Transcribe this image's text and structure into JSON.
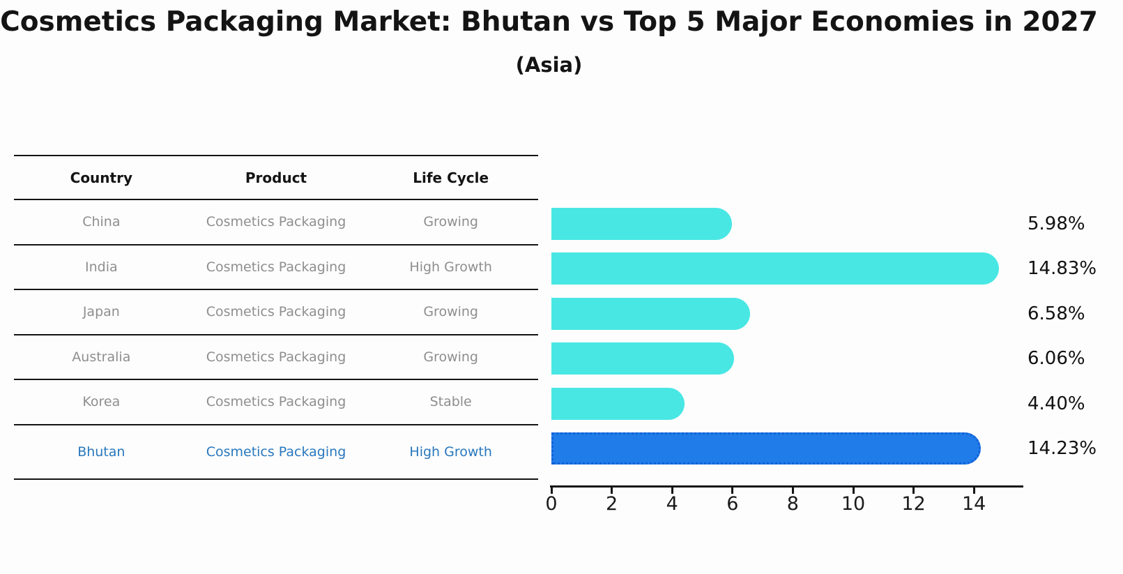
{
  "title": "Cosmetics Packaging Market: Bhutan vs Top 5 Major Economies in 2027",
  "subtitle": "(Asia)",
  "table": {
    "headers": [
      "Country",
      "Product",
      "Life Cycle"
    ],
    "rows": [
      {
        "country": "China",
        "product": "Cosmetics Packaging",
        "life_cycle": "Growing",
        "highlight": false
      },
      {
        "country": "India",
        "product": "Cosmetics Packaging",
        "life_cycle": "High Growth",
        "highlight": false
      },
      {
        "country": "Japan",
        "product": "Cosmetics Packaging",
        "life_cycle": "Growing",
        "highlight": false
      },
      {
        "country": "Australia",
        "product": "Cosmetics Packaging",
        "life_cycle": "Growing",
        "highlight": false
      },
      {
        "country": "Korea",
        "product": "Cosmetics Packaging",
        "life_cycle": "Stable",
        "highlight": false
      },
      {
        "country": "Bhutan",
        "product": "Cosmetics Packaging",
        "life_cycle": "High Growth",
        "highlight": true
      }
    ]
  },
  "chart_data": {
    "type": "bar",
    "orientation": "horizontal",
    "title": "Cosmetics Packaging Market: Bhutan vs Top 5 Major Economies in 2027 (Asia)",
    "categories": [
      "China",
      "India",
      "Japan",
      "Australia",
      "Korea",
      "Bhutan"
    ],
    "values": [
      5.98,
      14.83,
      6.58,
      6.06,
      4.4,
      14.23
    ],
    "value_labels": [
      "5.98%",
      "14.83%",
      "6.58%",
      "6.06%",
      "4.40%",
      "14.23%"
    ],
    "x_ticks": [
      0,
      2,
      4,
      6,
      8,
      10,
      12,
      14
    ],
    "xlim": [
      0,
      15.6
    ],
    "grid": false,
    "legend": "none",
    "highlight_category": "Bhutan",
    "colors": {
      "bar": "#48e7e3",
      "highlight_bar": "#1f7ce8",
      "highlight_border": "#1560d8",
      "highlight_text": "#2878be",
      "label": "#111111"
    }
  }
}
